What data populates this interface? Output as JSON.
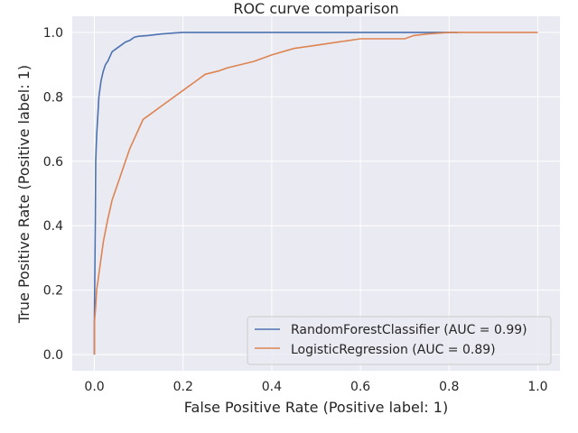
{
  "chart_data": {
    "type": "line",
    "title": "ROC curve comparison",
    "xlabel": "False Positive Rate (Positive label: 1)",
    "ylabel": "True Positive Rate (Positive label: 1)",
    "xlim": [
      -0.05,
      1.05
    ],
    "ylim": [
      -0.05,
      1.05
    ],
    "xticks": [
      "0.0",
      "0.2",
      "0.4",
      "0.6",
      "0.8",
      "1.0"
    ],
    "yticks": [
      "0.0",
      "0.2",
      "0.4",
      "0.6",
      "0.8",
      "1.0"
    ],
    "grid": true,
    "legend_position": "lower-right",
    "background_color": "#eaeaf2",
    "series": [
      {
        "name": "RandomForestClassifier (AUC = 0.99)",
        "color": "#4c72b0",
        "points": [
          [
            0.0,
            0.0
          ],
          [
            0.0,
            0.1
          ],
          [
            0.002,
            0.4
          ],
          [
            0.003,
            0.6
          ],
          [
            0.005,
            0.68
          ],
          [
            0.008,
            0.75
          ],
          [
            0.01,
            0.8
          ],
          [
            0.015,
            0.85
          ],
          [
            0.02,
            0.88
          ],
          [
            0.025,
            0.9
          ],
          [
            0.03,
            0.91
          ],
          [
            0.035,
            0.925
          ],
          [
            0.04,
            0.94
          ],
          [
            0.05,
            0.95
          ],
          [
            0.06,
            0.96
          ],
          [
            0.07,
            0.97
          ],
          [
            0.08,
            0.975
          ],
          [
            0.09,
            0.985
          ],
          [
            0.1,
            0.988
          ],
          [
            0.12,
            0.99
          ],
          [
            0.15,
            0.995
          ],
          [
            0.18,
            0.998
          ],
          [
            0.2,
            1.0
          ],
          [
            0.5,
            1.0
          ],
          [
            0.8,
            1.0
          ],
          [
            0.82,
            1.0
          ]
        ]
      },
      {
        "name": "LogisticRegression (AUC = 0.89)",
        "color": "#dd8452",
        "points": [
          [
            0.0,
            0.0
          ],
          [
            0.0,
            0.1
          ],
          [
            0.003,
            0.15
          ],
          [
            0.005,
            0.2
          ],
          [
            0.01,
            0.25
          ],
          [
            0.02,
            0.35
          ],
          [
            0.03,
            0.42
          ],
          [
            0.04,
            0.48
          ],
          [
            0.05,
            0.52
          ],
          [
            0.06,
            0.56
          ],
          [
            0.07,
            0.6
          ],
          [
            0.08,
            0.64
          ],
          [
            0.09,
            0.67
          ],
          [
            0.1,
            0.7
          ],
          [
            0.11,
            0.73
          ],
          [
            0.13,
            0.75
          ],
          [
            0.15,
            0.77
          ],
          [
            0.17,
            0.79
          ],
          [
            0.2,
            0.82
          ],
          [
            0.23,
            0.85
          ],
          [
            0.25,
            0.87
          ],
          [
            0.28,
            0.88
          ],
          [
            0.3,
            0.89
          ],
          [
            0.33,
            0.9
          ],
          [
            0.36,
            0.91
          ],
          [
            0.4,
            0.93
          ],
          [
            0.45,
            0.95
          ],
          [
            0.5,
            0.96
          ],
          [
            0.55,
            0.97
          ],
          [
            0.6,
            0.98
          ],
          [
            0.65,
            0.98
          ],
          [
            0.7,
            0.98
          ],
          [
            0.72,
            0.99
          ],
          [
            0.75,
            0.995
          ],
          [
            0.8,
            1.0
          ],
          [
            0.9,
            1.0
          ],
          [
            1.0,
            1.0
          ]
        ]
      }
    ]
  }
}
